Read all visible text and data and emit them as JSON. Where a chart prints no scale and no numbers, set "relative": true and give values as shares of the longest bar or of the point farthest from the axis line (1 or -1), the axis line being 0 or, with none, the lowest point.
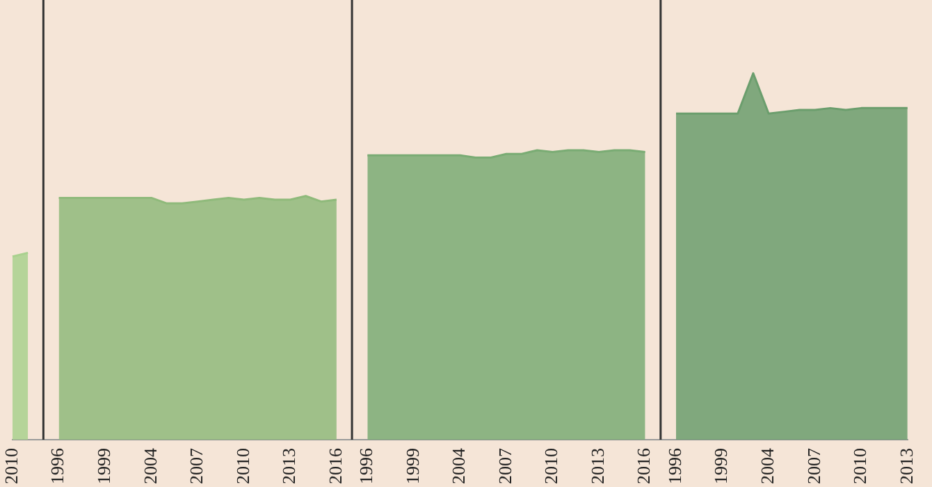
{
  "chart_data": {
    "type": "area",
    "relative": true,
    "legend": false,
    "categories": [
      "2010",
      null,
      null,
      "1996",
      null,
      null,
      "1999",
      null,
      null,
      "2004",
      null,
      null,
      "2007",
      null,
      null,
      "2010",
      null,
      null,
      "2013",
      null,
      null,
      "2016",
      null,
      "1996",
      null,
      null,
      "1999",
      null,
      null,
      "2004",
      null,
      null,
      "2007",
      null,
      null,
      "2010",
      null,
      null,
      "2013",
      null,
      null,
      "2016",
      null,
      "1996",
      null,
      null,
      "1999",
      null,
      null,
      "2004",
      null,
      null,
      "2007",
      null,
      null,
      "2010",
      null,
      null,
      "2013"
    ],
    "series": [
      {
        "color": "#a9d18e",
        "values": [
          0.5,
          0.51,
          null,
          null,
          null,
          null,
          null,
          null,
          null,
          null,
          null,
          null,
          null,
          null,
          null,
          null,
          null,
          null,
          null,
          null,
          null,
          null,
          null,
          null,
          null,
          null,
          null,
          null,
          null,
          null,
          null,
          null,
          null,
          null,
          null,
          null,
          null,
          null,
          null,
          null,
          null,
          null,
          null,
          null,
          null,
          null,
          null,
          null,
          null,
          null,
          null,
          null,
          null,
          null,
          null,
          null,
          null,
          null,
          null
        ]
      },
      {
        "color": "#8fba7b",
        "values": [
          null,
          null,
          null,
          0.66,
          0.66,
          0.66,
          0.66,
          0.66,
          0.66,
          0.66,
          0.645,
          0.645,
          0.65,
          0.655,
          0.66,
          0.655,
          0.66,
          0.655,
          0.655,
          0.665,
          0.65,
          0.655,
          null,
          null,
          null,
          null,
          null,
          null,
          null,
          null,
          null,
          null,
          null,
          null,
          null,
          null,
          null,
          null,
          null,
          null,
          null,
          null,
          null,
          null,
          null,
          null,
          null,
          null,
          null,
          null,
          null,
          null,
          null,
          null,
          null,
          null,
          null,
          null,
          null
        ]
      },
      {
        "color": "#7aac74",
        "values": [
          null,
          null,
          null,
          null,
          null,
          null,
          null,
          null,
          null,
          null,
          null,
          null,
          null,
          null,
          null,
          null,
          null,
          null,
          null,
          null,
          null,
          null,
          null,
          0.776,
          0.776,
          0.776,
          0.776,
          0.776,
          0.776,
          0.776,
          0.77,
          0.77,
          0.78,
          0.78,
          0.79,
          0.785,
          0.79,
          0.79,
          0.785,
          0.79,
          0.79,
          0.785,
          null,
          null,
          null,
          null,
          null,
          null,
          null,
          null,
          null,
          null,
          null,
          null,
          null,
          null,
          null,
          null,
          null
        ]
      },
      {
        "color": "#6b9e6d",
        "values": [
          null,
          null,
          null,
          null,
          null,
          null,
          null,
          null,
          null,
          null,
          null,
          null,
          null,
          null,
          null,
          null,
          null,
          null,
          null,
          null,
          null,
          null,
          null,
          null,
          null,
          null,
          null,
          null,
          null,
          null,
          null,
          null,
          null,
          null,
          null,
          null,
          null,
          null,
          null,
          null,
          null,
          null,
          null,
          0.89,
          0.89,
          0.89,
          0.89,
          0.89,
          1.0,
          0.89,
          0.895,
          0.9,
          0.9,
          0.905,
          0.9,
          0.905,
          0.905,
          0.905,
          0.905
        ]
      }
    ]
  }
}
